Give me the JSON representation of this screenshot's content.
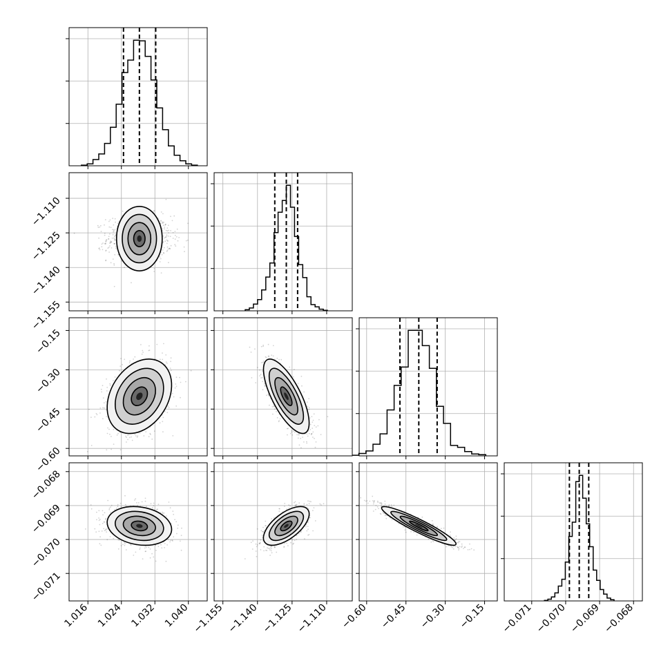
{
  "figure": {
    "type": "corner-plot",
    "grid": true,
    "colors": {
      "mark": "#000000",
      "grid": "#b0b0b0",
      "background": "#ffffff"
    }
  },
  "chart_data": {
    "type": "corner",
    "parameters": [
      {
        "range": [
          1.0115,
          1.0445
        ],
        "ticks": [
          1.016,
          1.024,
          1.032,
          1.04
        ],
        "tick_labels": [
          "1.016",
          "1.024",
          "1.032",
          "1.040"
        ]
      },
      {
        "range": [
          -1.1588,
          -1.0989
        ],
        "ticks": [
          -1.155,
          -1.14,
          -1.125,
          -1.11
        ],
        "tick_labels": [
          "−1.155",
          "−1.140",
          "−1.125",
          "−1.110"
        ]
      },
      {
        "range": [
          -0.6285,
          -0.1014
        ],
        "ticks": [
          -0.6,
          -0.45,
          -0.3,
          -0.15
        ],
        "tick_labels": [
          "−0.60",
          "−0.45",
          "−0.30",
          "−0.15"
        ]
      },
      {
        "range": [
          -0.07181,
          -0.06774
        ],
        "ticks": [
          -0.071,
          -0.07,
          -0.069,
          -0.068
        ],
        "tick_labels": [
          "−0.071",
          "−0.070",
          "−0.069",
          "−0.068"
        ]
      }
    ],
    "quantiles": [
      [
        1.0245,
        1.0283,
        1.0322
      ],
      [
        -1.1325,
        -1.1275,
        -1.1226
      ],
      [
        -0.473,
        -0.401,
        -0.331
      ],
      [
        -0.06989,
        -0.0696,
        -0.06932
      ]
    ],
    "histograms": [
      [
        1,
        3,
        10,
        19,
        36,
        62,
        99,
        150,
        170,
        202,
        201,
        176,
        138,
        93,
        58,
        32,
        17,
        8,
        3,
        1
      ],
      [
        2,
        5,
        12,
        20,
        37,
        60,
        85,
        139,
        175,
        196,
        223,
        184,
        132,
        82,
        59,
        25,
        11,
        7,
        3,
        1
      ],
      [
        1,
        4,
        8,
        19,
        36,
        75,
        115,
        145,
        205,
        205,
        180,
        143,
        81,
        53,
        17,
        14,
        7,
        3,
        2
      ],
      [
        1,
        3,
        7,
        14,
        26,
        38,
        68,
        113,
        138,
        209,
        220,
        180,
        135,
        95,
        54,
        36,
        20,
        12,
        5,
        2
      ]
    ],
    "correlations": [
      {
        "pair": [
          1,
          0
        ],
        "rho": 0.0
      },
      {
        "pair": [
          2,
          0
        ],
        "rho": 0.3
      },
      {
        "pair": [
          2,
          1
        ],
        "rho": -0.72
      },
      {
        "pair": [
          3,
          0
        ],
        "rho": -0.18
      },
      {
        "pair": [
          3,
          1
        ],
        "rho": 0.62
      },
      {
        "pair": [
          3,
          2
        ],
        "rho": -0.93
      }
    ],
    "contour_levels_sigma": [
      0.5,
      1.0,
      1.5,
      2.0
    ]
  }
}
